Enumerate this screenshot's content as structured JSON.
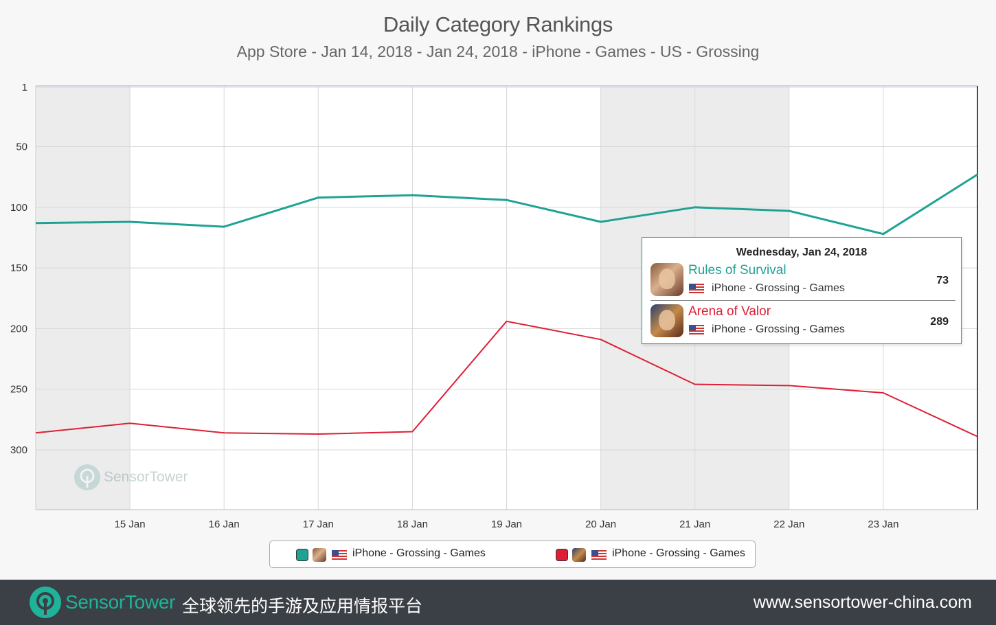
{
  "header": {
    "title": "Daily Category Rankings",
    "subtitle": "App Store - Jan 14, 2018 - Jan 24, 2018 - iPhone - Games - US - Grossing"
  },
  "chart_data": {
    "type": "line",
    "x": [
      "14 Jan",
      "15 Jan",
      "16 Jan",
      "17 Jan",
      "18 Jan",
      "19 Jan",
      "20 Jan",
      "21 Jan",
      "22 Jan",
      "23 Jan",
      "24 Jan"
    ],
    "x_tick_labels": [
      "15 Jan",
      "16 Jan",
      "17 Jan",
      "18 Jan",
      "19 Jan",
      "20 Jan",
      "21 Jan",
      "22 Jan",
      "23 Jan"
    ],
    "y_tick_labels": [
      "1",
      "50",
      "100",
      "150",
      "200",
      "250",
      "300"
    ],
    "y_ticks": [
      1,
      50,
      100,
      150,
      200,
      250,
      300
    ],
    "ylim": [
      1,
      350
    ],
    "y_reversed": true,
    "grid": true,
    "series": [
      {
        "name": "Rules of Survival",
        "color": "#1ea393",
        "values": [
          113,
          112,
          116,
          92,
          90,
          94,
          112,
          100,
          103,
          122,
          73
        ]
      },
      {
        "name": "Arena of Valor",
        "color": "#dd1f35",
        "values": [
          286,
          278,
          286,
          287,
          285,
          194,
          209,
          246,
          247,
          253,
          289
        ]
      }
    ],
    "legend_position": "bottom",
    "legend": [
      {
        "label": "iPhone - Grossing - Games",
        "color": "#1ea393",
        "icon": "rules-of-survival-app-icon"
      },
      {
        "label": "iPhone - Grossing - Games",
        "color": "#dd1f35",
        "icon": "arena-of-valor-app-icon"
      }
    ]
  },
  "tooltip": {
    "date": "Wednesday, Jan 24, 2018",
    "rows": [
      {
        "app": "Rules of Survival",
        "category": "iPhone - Grossing - Games",
        "rank": "73",
        "color": "#1ea393"
      },
      {
        "app": "Arena of Valor",
        "category": "iPhone - Grossing - Games",
        "rank": "289",
        "color": "#dd1f35"
      }
    ]
  },
  "watermark": {
    "brand": "SensorTower"
  },
  "footer": {
    "brand_part1": "Sensor",
    "brand_part2": "Tower",
    "tagline": "全球领先的手游及应用情报平台",
    "url": "www.sensortower-china.com"
  }
}
